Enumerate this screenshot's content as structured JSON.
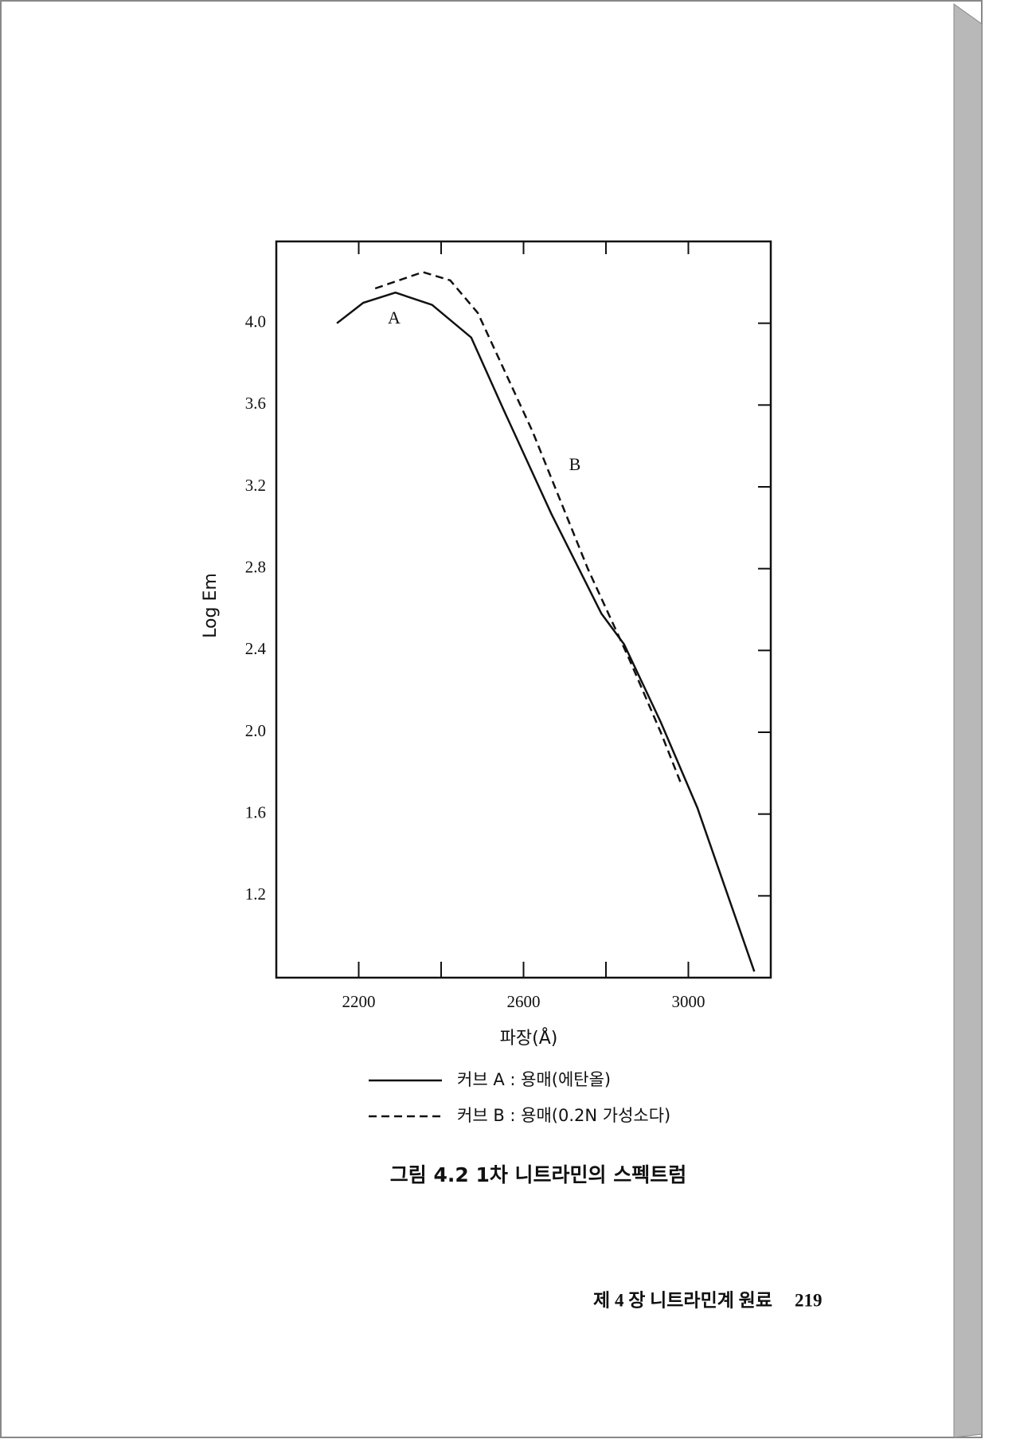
{
  "chart_data": {
    "type": "line",
    "x_label": "파장(Å)",
    "y_label": "Log Em",
    "xlim": [
      2000,
      3200
    ],
    "xticks": [
      2200,
      2600,
      3000
    ],
    "xminor_ticks": [
      2400,
      2800
    ],
    "ylim": [
      0.8,
      4.4
    ],
    "yticks": [
      1.2,
      1.6,
      {
        "value": 2,
        "label": "2.0"
      },
      2.4,
      2.8,
      3.2,
      3.6,
      {
        "value": 4,
        "label": "4.0"
      }
    ],
    "series": [
      {
        "name": "커브 A : 용매(에탄올)",
        "label": "A",
        "color": "#111111",
        "dash": "solid",
        "x": [
          2147,
          2211,
          2289,
          2378,
          2473,
          2551,
          2667,
          2789,
          2844,
          2933,
          3022,
          3160
        ],
        "values": [
          4.0,
          4.1,
          4.15,
          4.09,
          3.93,
          3.58,
          3.07,
          2.58,
          2.43,
          2.05,
          1.63,
          0.83
        ]
      },
      {
        "name": "커브 B : 용매(0.2N 가성소다)",
        "label": "B",
        "color": "#111111",
        "dash": "dashed",
        "x": [
          2240,
          2356,
          2422,
          2489,
          2622,
          2756,
          2856,
          2933,
          2982
        ],
        "values": [
          4.17,
          4.25,
          4.21,
          4.05,
          3.47,
          2.8,
          2.36,
          2.0,
          1.75
        ]
      }
    ]
  },
  "caption": "그림 4.2  1차 니트라민의 스펙트럼",
  "footer": {
    "chapter": "제 4 장  니트라민계 원료",
    "page_number": "219"
  }
}
